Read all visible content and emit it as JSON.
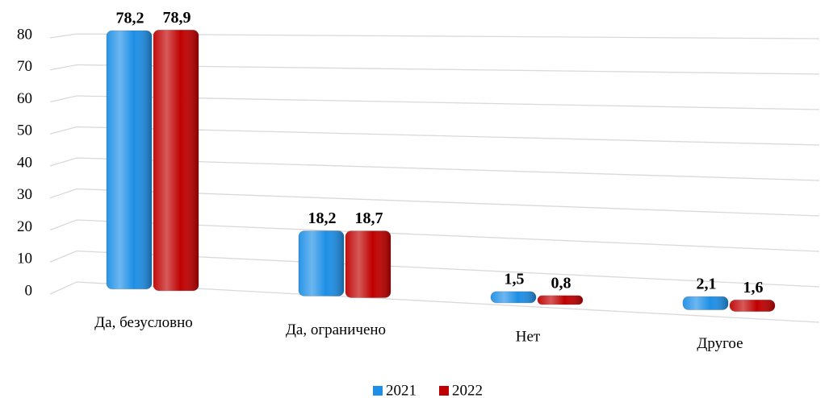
{
  "chart_data": {
    "type": "bar",
    "categories": [
      "Да, безусловно",
      "Да, ограничено",
      "Нет",
      "Другое"
    ],
    "series": [
      {
        "name": "2021",
        "color": "#1e8fe6",
        "values": [
          78.2,
          18.2,
          1.5,
          2.1
        ],
        "value_labels": [
          "78,2",
          "18,2",
          "1,5",
          "2,1"
        ]
      },
      {
        "name": "2022",
        "color": "#c00000",
        "values": [
          78.9,
          18.7,
          0.8,
          1.6
        ],
        "value_labels": [
          "78,9",
          "18,7",
          "0,8",
          "1,6"
        ]
      }
    ],
    "ylim": [
      0,
      80
    ],
    "yticks": [
      0,
      10,
      20,
      30,
      40,
      50,
      60,
      70,
      80
    ],
    "grid": true,
    "legend": "bottom"
  }
}
